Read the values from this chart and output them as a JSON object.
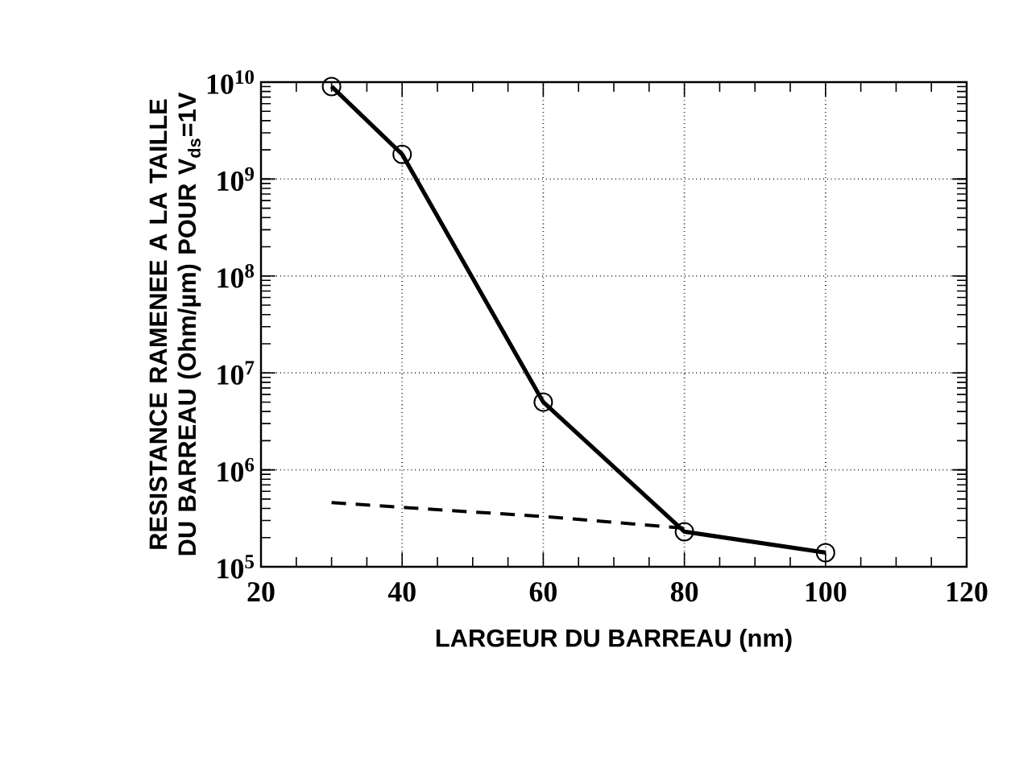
{
  "chart_data": {
    "type": "line",
    "xlabel": "LARGEUR DU BARREAU (nm)",
    "ylabel": "RESISTANCE RAMENEE A LA TAILLE DU BARREAU (Ohm/µm) POUR V$_{ds}$=1V",
    "log": "y",
    "grid": true,
    "xlim": [
      20,
      120
    ],
    "xticks": [
      20,
      40,
      60,
      80,
      100,
      120
    ],
    "ylim": [
      100000,
      10000000000
    ],
    "yticks": [
      {
        "value": 100000,
        "label": "10$^{5}$"
      },
      {
        "value": 1000000,
        "label": "10$^{6}$"
      },
      {
        "value": 10000000,
        "label": "10$^{7}$"
      },
      {
        "value": 100000000,
        "label": "10$^{8}$"
      },
      {
        "value": 1000000000,
        "label": "10$^{9}$"
      },
      {
        "value": 10000000000,
        "label": "10$^{10}$"
      }
    ],
    "series": [
      {
        "color": "#000000",
        "marker": "circle",
        "line_style": "solid",
        "x": [
          30,
          40,
          60,
          80,
          100
        ],
        "values": [
          9000000000,
          1800000000,
          5000000,
          230000,
          140000
        ]
      },
      {
        "color": "#000000",
        "marker": "none",
        "line_style": "dashed",
        "x": [
          30,
          40,
          60,
          80
        ],
        "values": [
          460000,
          410000,
          330000,
          250000
        ]
      }
    ]
  }
}
